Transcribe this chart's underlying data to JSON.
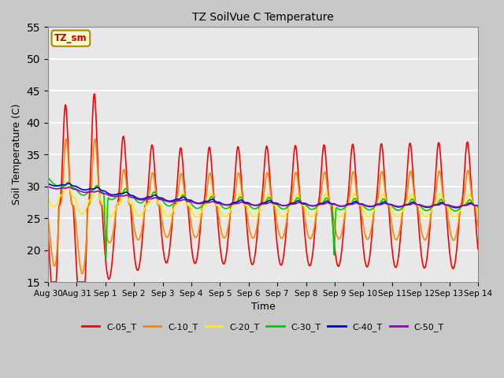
{
  "title": "TZ SoilVue C Temperature",
  "xlabel": "Time",
  "ylabel": "Soil Temperature (C)",
  "ylim": [
    15,
    55
  ],
  "yticks": [
    15,
    20,
    25,
    30,
    35,
    40,
    45,
    50,
    55
  ],
  "plot_bg_color": "#e8e8e8",
  "fig_bg_color": "#c8c8c8",
  "annotation_text": "TZ_sm",
  "annotation_bg": "#ffffcc",
  "annotation_border": "#aa8800",
  "annotation_text_color": "#cc0000",
  "series_order": [
    "C-05_T",
    "C-10_T",
    "C-20_T",
    "C-30_T",
    "C-40_T",
    "C-50_T"
  ],
  "series_colors": {
    "C-05_T": "#ff0000",
    "C-10_T": "#ff8800",
    "C-20_T": "#ffee00",
    "C-30_T": "#00cc00",
    "C-40_T": "#0000dd",
    "C-50_T": "#9900bb"
  },
  "xtick_labels": [
    "Aug 30",
    "Aug 31",
    "Sep 1",
    "Sep 2",
    "Sep 3",
    "Sep 4",
    "Sep 5",
    "Sep 6",
    "Sep 7",
    "Sep 8",
    "Sep 9",
    "Sep 10",
    "Sep 11",
    "Sep 12",
    "Sep 13",
    "Sep 14"
  ]
}
